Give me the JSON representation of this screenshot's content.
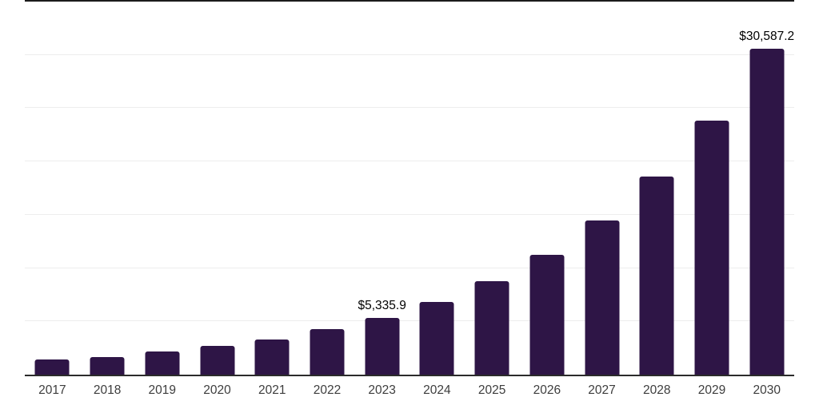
{
  "chart_data": {
    "type": "bar",
    "title": "",
    "xlabel": "",
    "ylabel": "",
    "categories": [
      "2017",
      "2018",
      "2019",
      "2020",
      "2021",
      "2022",
      "2023",
      "2024",
      "2025",
      "2026",
      "2027",
      "2028",
      "2029",
      "2030"
    ],
    "values": [
      1400,
      1650,
      2150,
      2700,
      3300,
      4250,
      5335.9,
      6850,
      8790,
      11280,
      14470,
      18570,
      23840,
      30587.2
    ],
    "value_labels": [
      {
        "category": "2023",
        "text": "$5,335.9"
      },
      {
        "category": "2030",
        "text": "$30,587.2"
      }
    ],
    "ylim": [
      0,
      35000
    ],
    "gridline_step": 5000,
    "grid": "horizontal-light",
    "legend": "none"
  },
  "colors": {
    "bar": "#2e1546",
    "gridline": "#ededed",
    "top_rule": "#1b1b1b",
    "axis_line": "#2b2b2b",
    "value_label_text": "#000000",
    "tick_label_text": "#3d3d3d",
    "background": "#ffffff"
  }
}
